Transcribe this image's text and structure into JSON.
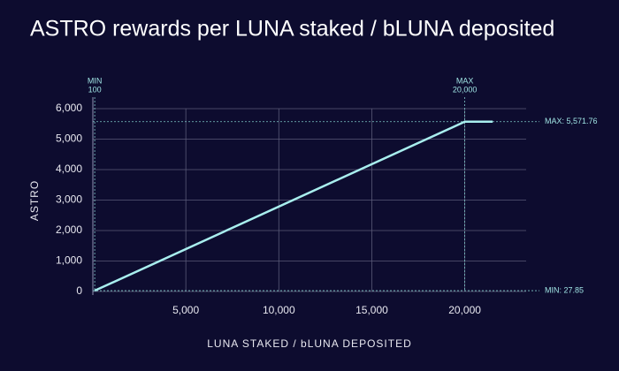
{
  "chart_data": {
    "type": "line",
    "title": "ASTRO rewards per LUNA staked / bLUNA deposited",
    "x_label": "LUNA STAKED / bLUNA DEPOSITED",
    "y_label": "ASTRO",
    "x": [
      100,
      20000,
      21500
    ],
    "series": [
      {
        "color": "#a8eeee",
        "values": [
          27.85,
          5571.76,
          5571.76
        ]
      }
    ],
    "xlim": [
      0,
      23300
    ],
    "ylim": [
      0,
      6000
    ],
    "xticks": [
      {
        "value": 5000,
        "label": "5,000"
      },
      {
        "value": 10000,
        "label": "10,000"
      },
      {
        "value": 15000,
        "label": "15,000"
      },
      {
        "value": 20000,
        "label": "20,000"
      }
    ],
    "yticks": [
      0,
      {
        "value": 1000,
        "label": "1,000"
      },
      {
        "value": 2000,
        "label": "2,000"
      },
      {
        "value": 3000,
        "label": "3,000"
      },
      {
        "value": 4000,
        "label": "4,000"
      },
      {
        "value": 5000,
        "label": "5,000"
      },
      {
        "value": 6000,
        "label": "6,000"
      }
    ],
    "grid": true,
    "x_markers": [
      {
        "label": "MIN",
        "value": 100,
        "value_label": "100"
      },
      {
        "label": "MAX",
        "value": 20000,
        "value_label": "20,000"
      }
    ],
    "y_markers": [
      {
        "value": 5571.76,
        "label": "MAX: 5,571.76"
      },
      {
        "value": 27.85,
        "label": "MIN: 27.85"
      }
    ]
  }
}
